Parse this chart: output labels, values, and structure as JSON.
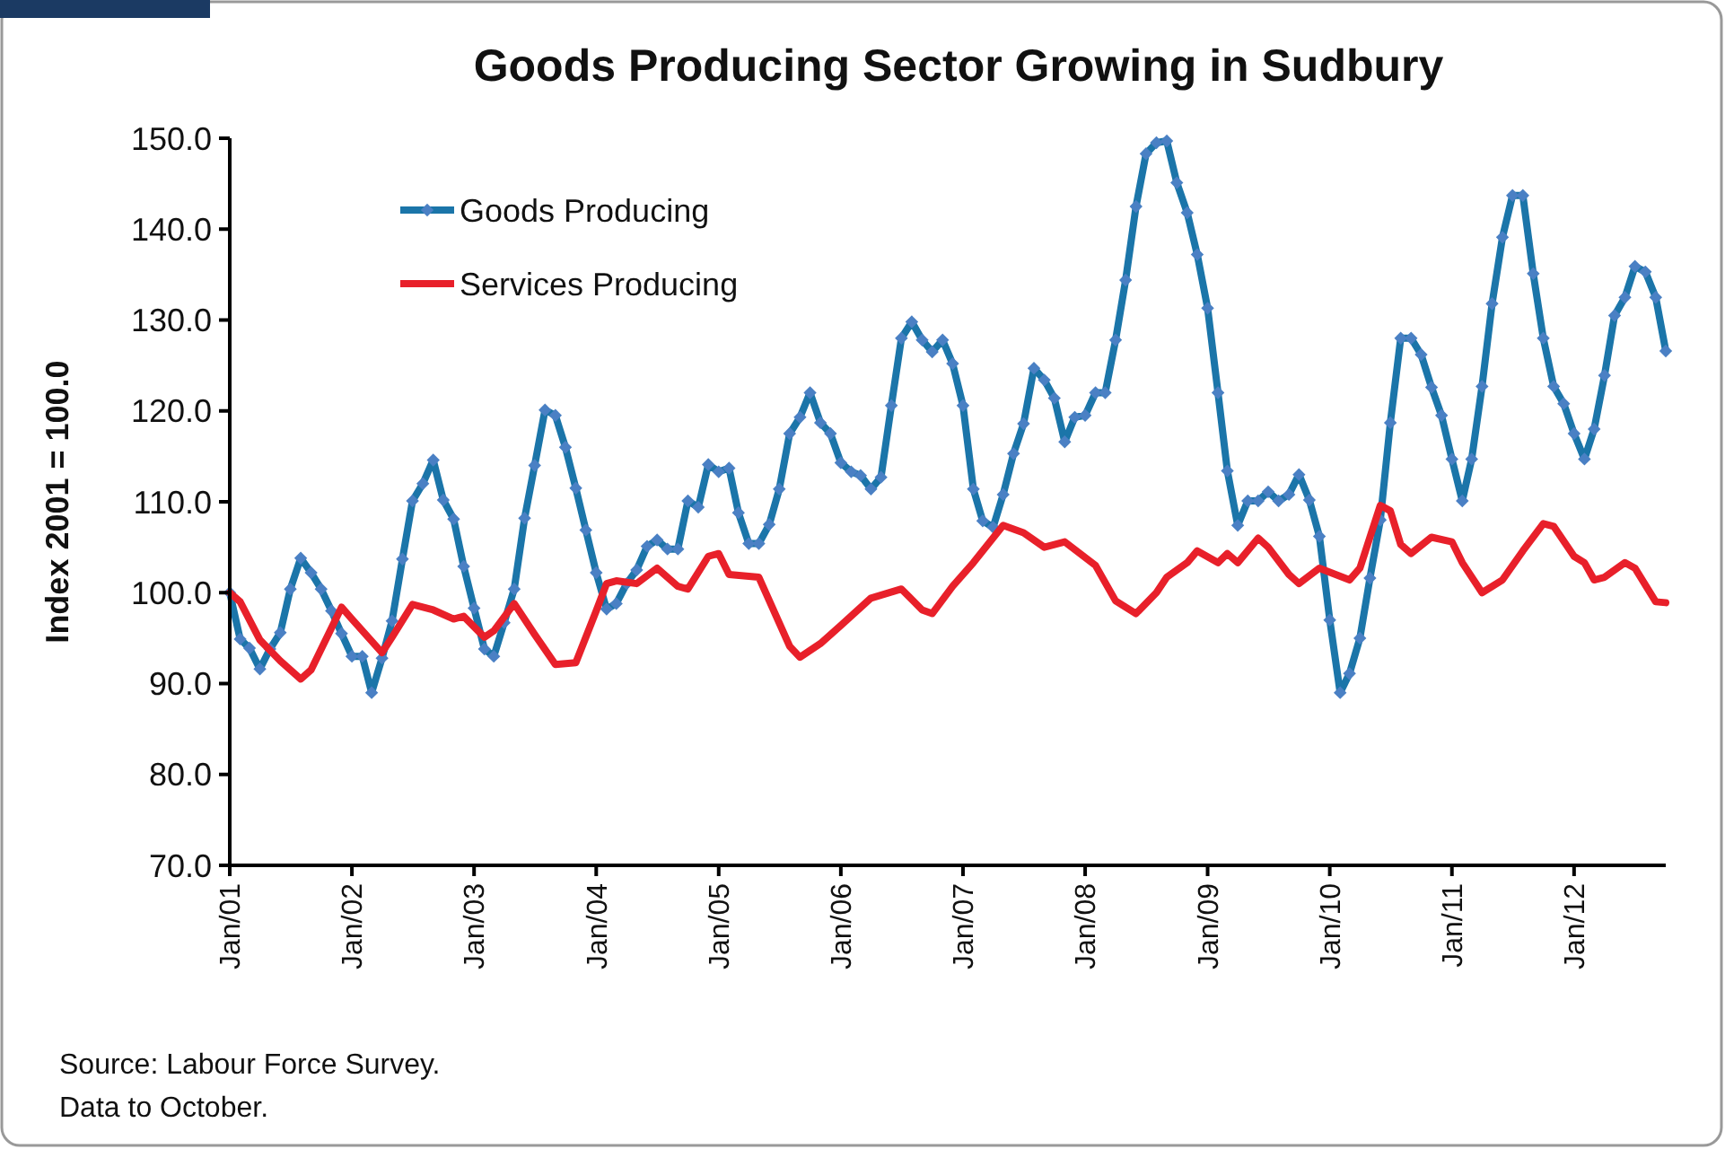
{
  "chart_data": {
    "type": "line",
    "title": "Goods Producing Sector Growing in Sudbury",
    "ylabel": "Index 2001 = 100.0",
    "annotations": [
      "Source: Labour Force Survey.",
      "Data to October."
    ],
    "x": [
      "2001-01",
      "2001-02",
      "2001-03",
      "2001-04",
      "2001-05",
      "2001-06",
      "2001-07",
      "2001-08",
      "2001-09",
      "2001-10",
      "2001-11",
      "2001-12",
      "2002-01",
      "2002-02",
      "2002-03",
      "2002-04",
      "2002-05",
      "2002-06",
      "2002-07",
      "2002-08",
      "2002-09",
      "2002-10",
      "2002-11",
      "2002-12",
      "2003-01",
      "2003-02",
      "2003-03",
      "2003-04",
      "2003-05",
      "2003-06",
      "2003-07",
      "2003-08",
      "2003-09",
      "2003-10",
      "2003-11",
      "2003-12",
      "2004-01",
      "2004-02",
      "2004-03",
      "2004-04",
      "2004-05",
      "2004-06",
      "2004-07",
      "2004-08",
      "2004-09",
      "2004-10",
      "2004-11",
      "2004-12",
      "2005-01",
      "2005-02",
      "2005-03",
      "2005-04",
      "2005-05",
      "2005-06",
      "2005-07",
      "2005-08",
      "2005-09",
      "2005-10",
      "2005-11",
      "2005-12",
      "2006-01",
      "2006-02",
      "2006-03",
      "2006-04",
      "2006-05",
      "2006-06",
      "2006-07",
      "2006-08",
      "2006-09",
      "2006-10",
      "2006-11",
      "2006-12",
      "2007-01",
      "2007-02",
      "2007-03",
      "2007-04",
      "2007-05",
      "2007-06",
      "2007-07",
      "2007-08",
      "2007-09",
      "2007-10",
      "2007-11",
      "2007-12",
      "2008-01",
      "2008-02",
      "2008-03",
      "2008-04",
      "2008-05",
      "2008-06",
      "2008-07",
      "2008-08",
      "2008-09",
      "2008-10",
      "2008-11",
      "2008-12",
      "2009-01",
      "2009-02",
      "2009-03",
      "2009-04",
      "2009-05",
      "2009-06",
      "2009-07",
      "2009-08",
      "2009-09",
      "2009-10",
      "2009-11",
      "2009-12",
      "2010-01",
      "2010-02",
      "2010-03",
      "2010-04",
      "2010-05",
      "2010-06",
      "2010-07",
      "2010-08",
      "2010-09",
      "2010-10",
      "2010-11",
      "2010-12",
      "2011-01",
      "2011-02",
      "2011-03",
      "2011-04",
      "2011-05",
      "2011-06",
      "2011-07",
      "2011-08",
      "2011-09",
      "2011-10",
      "2011-11",
      "2011-12",
      "2012-01",
      "2012-02",
      "2012-03",
      "2012-04",
      "2012-05",
      "2012-06",
      "2012-07",
      "2012-08",
      "2012-09",
      "2012-10"
    ],
    "series": [
      {
        "name": "Goods Producing",
        "color": "#1b75a9",
        "marker": "diamond",
        "values": [
          100.0,
          94.9,
          93.9,
          91.6,
          93.8,
          95.6,
          100.4,
          103.8,
          102.2,
          100.4,
          98.0,
          95.5,
          93.0,
          93.0,
          89.0,
          92.8,
          96.9,
          103.7,
          110.1,
          112.0,
          114.6,
          110.2,
          108.1,
          102.9,
          98.3,
          93.8,
          93.0,
          96.7,
          100.4,
          108.2,
          114.0,
          120.1,
          119.5,
          116.0,
          111.5,
          106.9,
          102.2,
          98.2,
          98.8,
          101.0,
          102.5,
          105.1,
          105.8,
          104.8,
          104.8,
          110.1,
          109.4,
          114.1,
          113.3,
          113.7,
          108.8,
          105.4,
          105.4,
          107.5,
          111.4,
          117.5,
          119.3,
          122.0,
          118.7,
          117.5,
          114.3,
          113.3,
          112.9,
          111.4,
          112.7,
          120.6,
          128.0,
          129.8,
          127.8,
          126.5,
          127.8,
          125.2,
          120.6,
          111.4,
          107.9,
          107.2,
          110.8,
          115.3,
          118.6,
          124.7,
          123.4,
          121.4,
          116.6,
          119.3,
          119.5,
          122.0,
          122.0,
          127.8,
          134.4,
          142.5,
          148.3,
          149.5,
          149.7,
          145.1,
          141.8,
          137.2,
          131.3,
          122.0,
          113.4,
          107.4,
          110.1,
          110.1,
          111.1,
          110.1,
          110.8,
          113.0,
          110.2,
          106.2,
          97.0,
          89.0,
          91.1,
          95.0,
          101.6,
          108.0,
          118.7,
          128.0,
          128.0,
          126.2,
          122.6,
          119.5,
          114.7,
          110.1,
          114.7,
          122.7,
          131.8,
          139.1,
          143.7,
          143.7,
          135.1,
          128.0,
          122.7,
          120.8,
          117.5,
          114.7,
          118.0,
          123.9,
          130.5,
          132.5,
          135.9,
          135.3,
          132.5,
          126.6
        ]
      },
      {
        "name": "Services Producing",
        "color": "#e8202a",
        "marker": "none",
        "x": [
          "2001-01",
          "2001-02",
          "2001-04",
          "2001-06",
          "2001-08",
          "2001-09",
          "2001-12",
          "2002-01",
          "2002-04",
          "2002-05",
          "2002-07",
          "2002-09",
          "2002-11",
          "2002-12",
          "2003-02",
          "2003-03",
          "2003-05",
          "2003-07",
          "2003-09",
          "2003-11",
          "2004-01",
          "2004-02",
          "2004-03",
          "2004-05",
          "2004-07",
          "2004-09",
          "2004-10",
          "2004-12",
          "2005-01",
          "2005-02",
          "2005-05",
          "2005-08",
          "2005-09",
          "2005-11",
          "2006-01",
          "2006-04",
          "2006-07",
          "2006-09",
          "2006-10",
          "2006-12",
          "2007-02",
          "2007-05",
          "2007-07",
          "2007-09",
          "2007-11",
          "2008-02",
          "2008-04",
          "2008-06",
          "2008-08",
          "2008-09",
          "2008-11",
          "2008-12",
          "2009-02",
          "2009-03",
          "2009-04",
          "2009-06",
          "2009-07",
          "2009-09",
          "2009-10",
          "2009-12",
          "2010-03",
          "2010-04",
          "2010-06",
          "2010-07",
          "2010-08",
          "2010-09",
          "2010-11",
          "2011-01",
          "2011-02",
          "2011-04",
          "2011-06",
          "2011-08",
          "2011-10",
          "2011-11",
          "2012-01",
          "2012-02",
          "2012-03",
          "2012-04",
          "2012-06",
          "2012-07",
          "2012-09",
          "2012-10"
        ],
        "values": [
          100.0,
          99.0,
          94.8,
          92.5,
          90.5,
          91.5,
          98.4,
          97.1,
          93.4,
          95.1,
          98.7,
          98.1,
          97.1,
          97.4,
          95.1,
          95.8,
          98.8,
          95.4,
          92.1,
          92.3,
          98.0,
          101.0,
          101.3,
          101.0,
          102.7,
          100.7,
          100.4,
          104.0,
          104.3,
          102.0,
          101.7,
          94.1,
          92.9,
          94.4,
          96.4,
          99.4,
          100.4,
          98.1,
          97.7,
          100.7,
          103.3,
          107.4,
          106.6,
          105.0,
          105.6,
          103.0,
          99.1,
          97.7,
          100.0,
          101.7,
          103.3,
          104.6,
          103.3,
          104.3,
          103.3,
          106.0,
          105.0,
          102.0,
          101.0,
          102.7,
          101.4,
          102.7,
          109.6,
          109.0,
          105.3,
          104.3,
          106.1,
          105.6,
          103.3,
          100.0,
          101.4,
          104.6,
          107.6,
          107.3,
          104.0,
          103.3,
          101.4,
          101.7,
          103.3,
          102.7,
          99.0,
          98.9
        ]
      }
    ],
    "xlim": [
      "2001-01",
      "2012-10"
    ],
    "xticks": [
      {
        "value": "2001-01",
        "label": "Jan/01"
      },
      {
        "value": "2002-01",
        "label": "Jan/02"
      },
      {
        "value": "2003-01",
        "label": "Jan/03"
      },
      {
        "value": "2004-01",
        "label": "Jan/04"
      },
      {
        "value": "2005-01",
        "label": "Jan/05"
      },
      {
        "value": "2006-01",
        "label": "Jan/06"
      },
      {
        "value": "2007-01",
        "label": "Jan/07"
      },
      {
        "value": "2008-01",
        "label": "Jan/08"
      },
      {
        "value": "2009-01",
        "label": "Jan/09"
      },
      {
        "value": "2010-01",
        "label": "Jan/10"
      },
      {
        "value": "2011-01",
        "label": "Jan/11"
      },
      {
        "value": "2012-01",
        "label": "Jan/12"
      }
    ],
    "ylim": [
      70,
      150
    ],
    "yticks": [
      {
        "value": 70,
        "label": "70.0"
      },
      {
        "value": 80,
        "label": "80.0"
      },
      {
        "value": 90,
        "label": "90.0"
      },
      {
        "value": 100,
        "label": "100.0"
      },
      {
        "value": 110,
        "label": "110.0"
      },
      {
        "value": 120,
        "label": "120.0"
      },
      {
        "value": 130,
        "label": "130.0"
      },
      {
        "value": 140,
        "label": "140.0"
      },
      {
        "value": 150,
        "label": "150.0"
      }
    ],
    "grid": false,
    "legend": "top left"
  }
}
